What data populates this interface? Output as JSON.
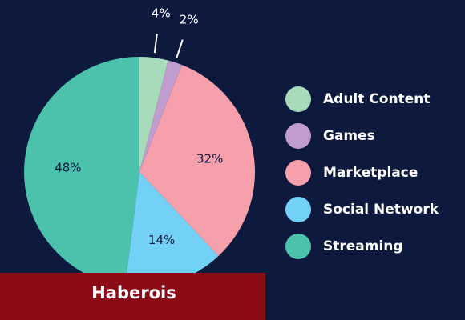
{
  "colors": {
    "background": "#0e1a3d",
    "label_inside": "#0e1a3d",
    "label_outside": "#ffffff",
    "legend_text": "#ffffff",
    "leader_line": "#ffffff",
    "banner_bg": "#8b0c17",
    "banner_text": "#ffffff"
  },
  "chart_data": {
    "type": "pie",
    "title": "",
    "legend_position": "right",
    "slices": [
      {
        "label": "Adult Content",
        "value": 4,
        "display": "4%",
        "color": "#a8dbb9",
        "label_position": "outside"
      },
      {
        "label": "Games",
        "value": 2,
        "display": "2%",
        "color": "#c19cce",
        "label_position": "outside"
      },
      {
        "label": "Marketplace",
        "value": 32,
        "display": "32%",
        "color": "#f5a0ab",
        "label_position": "inside"
      },
      {
        "label": "Social Network",
        "value": 14,
        "display": "14%",
        "color": "#74d1f6",
        "label_position": "inside"
      },
      {
        "label": "Streaming",
        "value": 48,
        "display": "48%",
        "color": "#4cc2ad",
        "label_position": "inside"
      }
    ]
  },
  "banner": {
    "text": "Haberois"
  }
}
